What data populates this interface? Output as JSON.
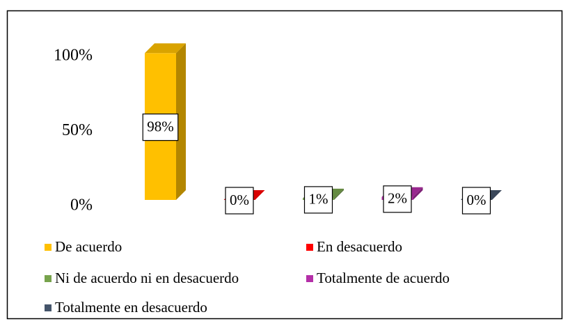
{
  "chart_data": {
    "type": "bar",
    "categories": [
      null
    ],
    "series": [
      {
        "name": "De acuerdo",
        "color": "#FFC000",
        "values": [
          98
        ],
        "value_labels": [
          "98%"
        ]
      },
      {
        "name": "En desacuerdo",
        "color": "#FF0000",
        "values": [
          0
        ],
        "value_labels": [
          "0%"
        ]
      },
      {
        "name": "Ni de acuerdo ni en desacuerdo",
        "color": "#77A34C",
        "values": [
          1
        ],
        "value_labels": [
          "1%"
        ]
      },
      {
        "name": "Totalmente de acuerdo",
        "color": "#B42FA8",
        "values": [
          2
        ],
        "value_labels": [
          "2%"
        ]
      },
      {
        "name": "Totalmente en desacuerdo",
        "color": "#44546A",
        "values": [
          0
        ],
        "value_labels": [
          "0%"
        ]
      }
    ],
    "ylim": [
      0,
      100
    ],
    "yticks": [
      {
        "value": 0,
        "label": "0%"
      },
      {
        "value": 50,
        "label": "50%"
      },
      {
        "value": 100,
        "label": "100%"
      }
    ],
    "grid": false,
    "legend": "bottom"
  }
}
